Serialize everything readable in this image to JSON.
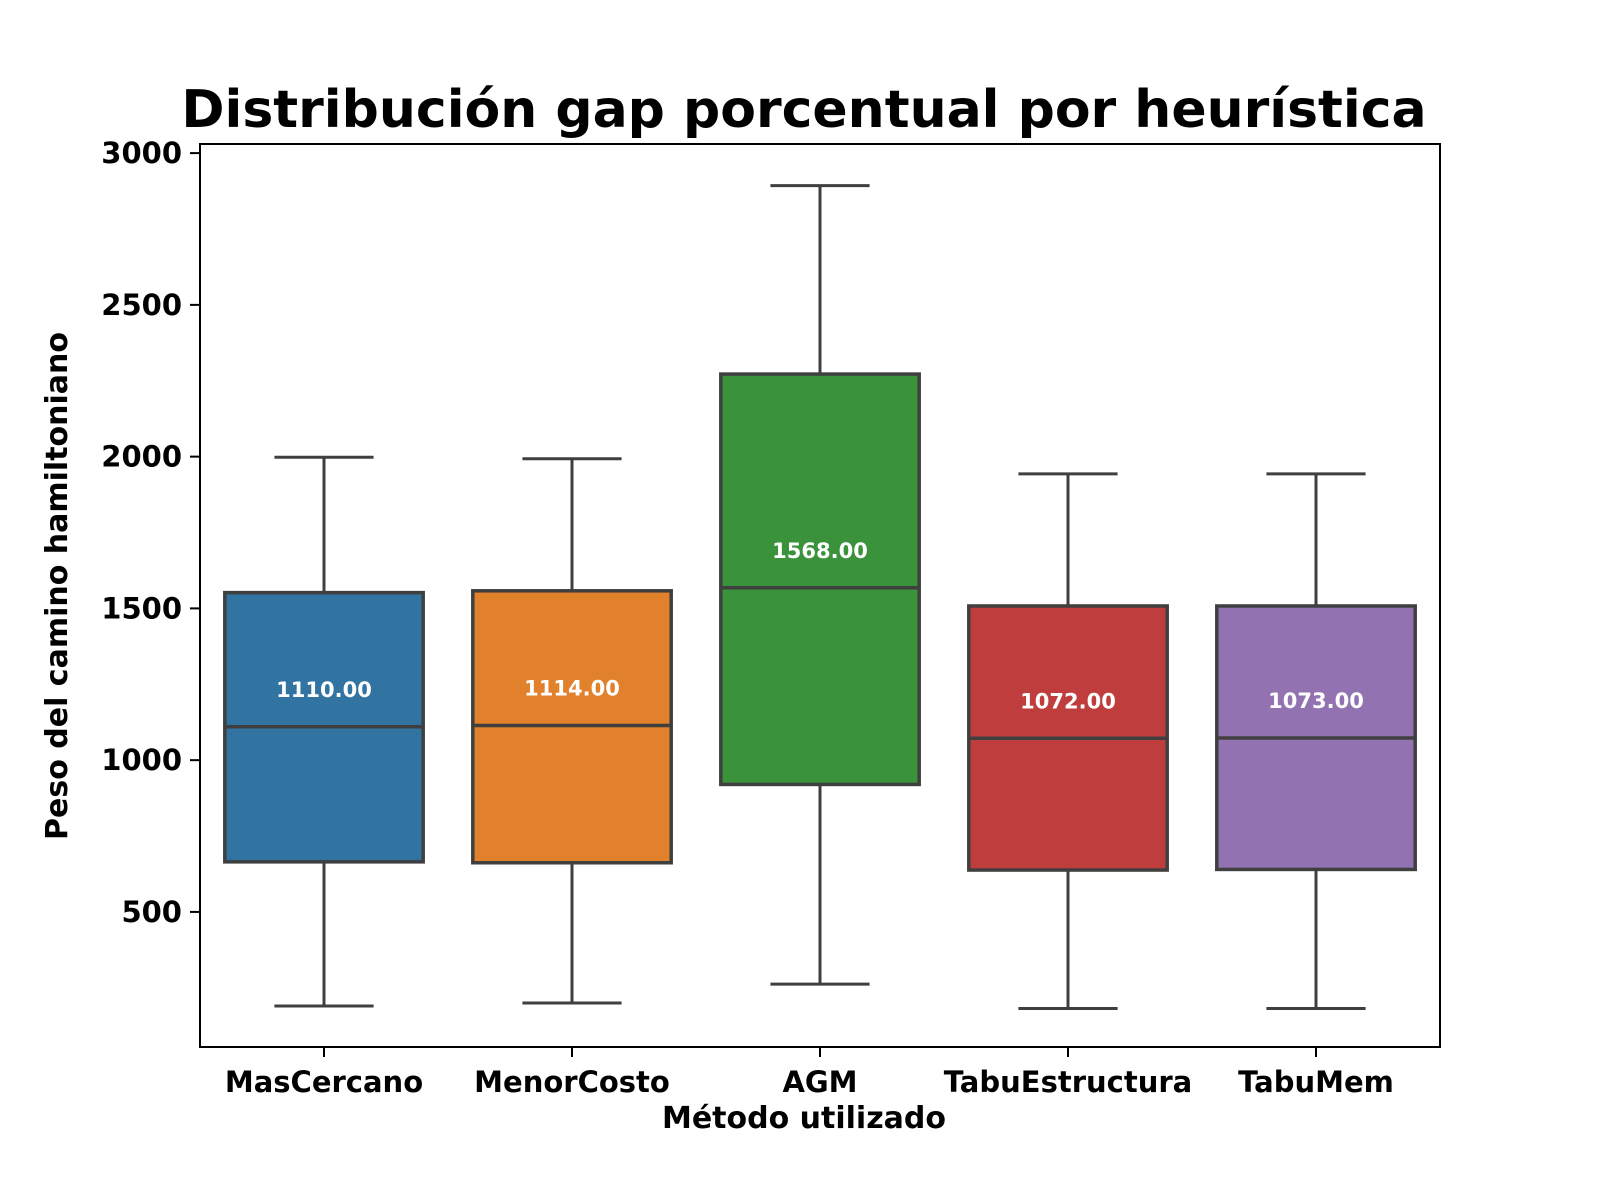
{
  "chart_data": {
    "type": "box",
    "title": "Distribución gap porcentual por heurística",
    "xlabel": "Método utilizado",
    "ylabel": "Peso del camino hamiltoniano",
    "ylim": [
      55,
      3030
    ],
    "yticks": [
      500,
      1000,
      1500,
      2000,
      2500,
      3000
    ],
    "grid": false,
    "legend": "none",
    "categories": [
      "MasCercano",
      "MenorCosto",
      "AGM",
      "TabuEstructura",
      "TabuMem"
    ],
    "boxes": [
      {
        "name": "MasCercano",
        "color": "#3274a1",
        "whisker_low": 190,
        "q1": 665,
        "median": 1110,
        "q3": 1552,
        "whisker_high": 1998,
        "median_label": "1110.00"
      },
      {
        "name": "MenorCosto",
        "color": "#e1812c",
        "whisker_low": 200,
        "q1": 662,
        "median": 1114,
        "q3": 1558,
        "whisker_high": 1993,
        "median_label": "1114.00"
      },
      {
        "name": "AGM",
        "color": "#3a923a",
        "whisker_low": 262,
        "q1": 920,
        "median": 1568,
        "q3": 2272,
        "whisker_high": 2893,
        "median_label": "1568.00"
      },
      {
        "name": "TabuEstructura",
        "color": "#c03d3e",
        "whisker_low": 182,
        "q1": 638,
        "median": 1072,
        "q3": 1508,
        "whisker_high": 1943,
        "median_label": "1072.00"
      },
      {
        "name": "TabuMem",
        "color": "#9372b2",
        "whisker_low": 182,
        "q1": 640,
        "median": 1073,
        "q3": 1508,
        "whisker_high": 1943,
        "median_label": "1073.00"
      }
    ],
    "colors": {
      "lines": "#3f3f3f",
      "median_text": "#ffffff"
    }
  }
}
